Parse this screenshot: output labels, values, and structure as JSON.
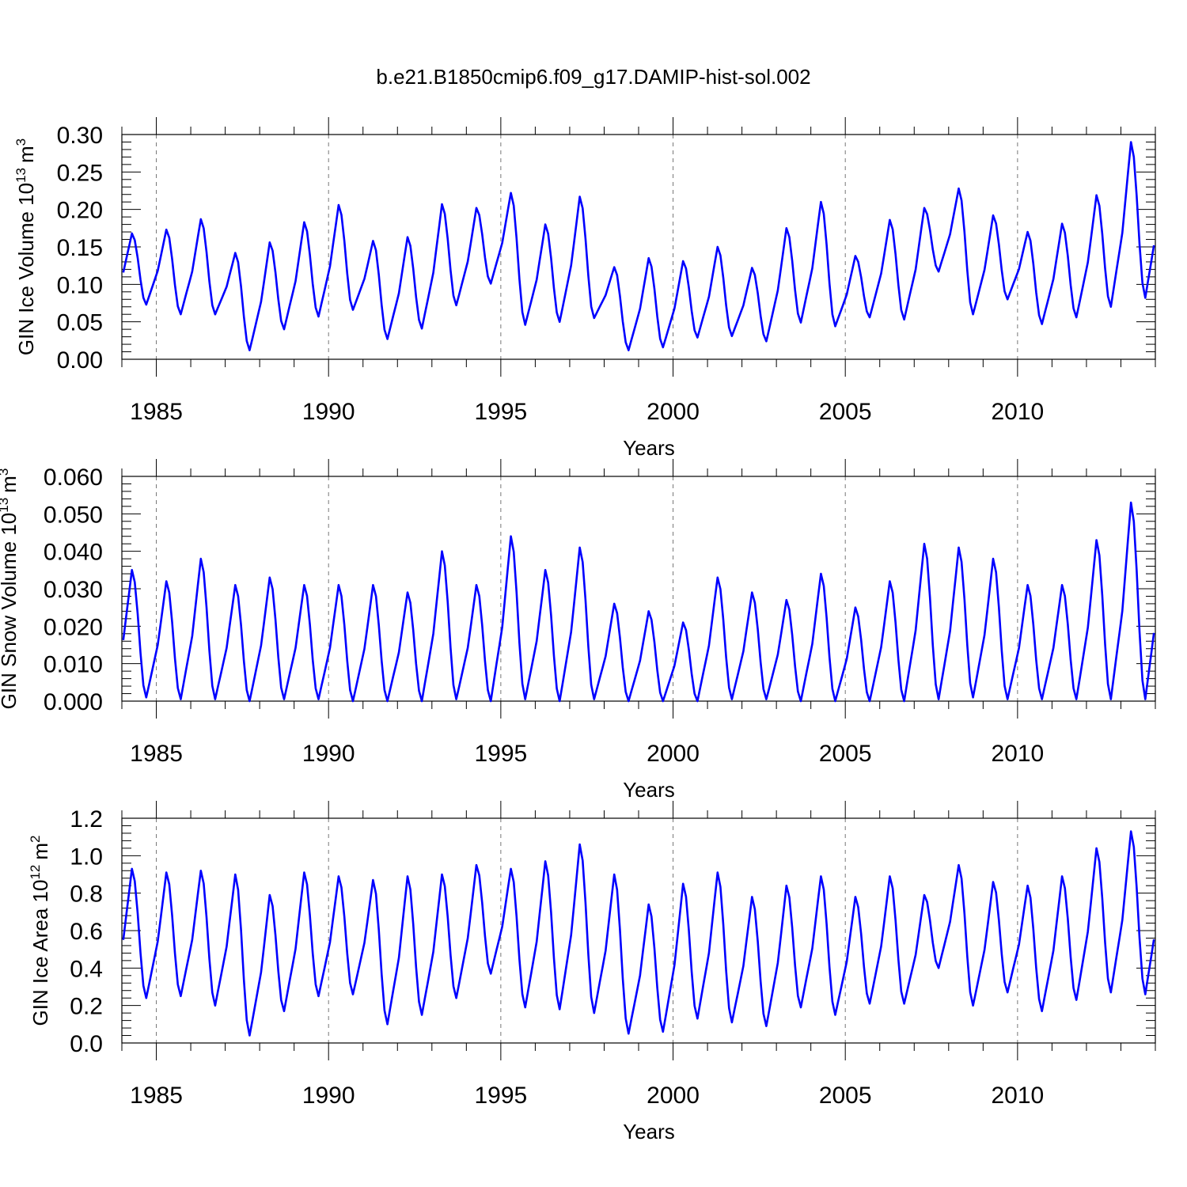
{
  "title": "b.e21.B1850cmip6.f09_g17.DAMIP-hist-sol.002",
  "chart_data": [
    {
      "type": "line",
      "title": "b.e21.B1850cmip6.f09_g17.DAMIP-hist-sol.002",
      "ylabel_main": "GIN Ice Volume 10",
      "ylabel_exp": "13",
      "ylabel_unit": "m",
      "ylabel_unit_exp": "3",
      "xlabel": "Years",
      "xlim": [
        1984.0,
        2014.0
      ],
      "ylim": [
        0.0,
        0.3
      ],
      "yticks": [
        0.0,
        0.05,
        0.1,
        0.15,
        0.2,
        0.25,
        0.3
      ],
      "ytick_labels": [
        "0.00",
        "0.05",
        "0.10",
        "0.15",
        "0.20",
        "0.25",
        "0.30"
      ],
      "xticks": [
        1985,
        1990,
        1995,
        2000,
        2005,
        2010
      ],
      "xtick_labels": [
        "1985",
        "1990",
        "1995",
        "2000",
        "2005",
        "2010"
      ],
      "grid": "dashed vertical at major x ticks",
      "series": [
        {
          "name": "GIN Ice Volume",
          "color": "#0000ff",
          "peaks": [
            0.168,
            0.173,
            0.187,
            0.142,
            0.156,
            0.183,
            0.206,
            0.158,
            0.163,
            0.207,
            0.202,
            0.222,
            0.18,
            0.217,
            0.123,
            0.135,
            0.131,
            0.15,
            0.122,
            0.175,
            0.21,
            0.138,
            0.186,
            0.202,
            0.228,
            0.192,
            0.17,
            0.181,
            0.219,
            0.29
          ],
          "troughs": [
            0.073,
            0.06,
            0.06,
            0.012,
            0.04,
            0.057,
            0.066,
            0.027,
            0.041,
            0.072,
            0.101,
            0.046,
            0.05,
            0.055,
            0.012,
            0.016,
            0.029,
            0.031,
            0.024,
            0.049,
            0.044,
            0.056,
            0.053,
            0.117,
            0.06,
            0.08,
            0.047,
            0.056,
            0.07,
            0.082
          ]
        }
      ]
    },
    {
      "type": "line",
      "ylabel_main": "GIN Snow Volume 10",
      "ylabel_exp": "13",
      "ylabel_unit": "m",
      "ylabel_unit_exp": "3",
      "xlabel": "Years",
      "xlim": [
        1984.0,
        2014.0
      ],
      "ylim": [
        0.0,
        0.06
      ],
      "yticks": [
        0.0,
        0.01,
        0.02,
        0.03,
        0.04,
        0.05,
        0.06
      ],
      "ytick_labels": [
        "0.000",
        "0.010",
        "0.020",
        "0.030",
        "0.040",
        "0.050",
        "0.060"
      ],
      "xticks": [
        1985,
        1990,
        1995,
        2000,
        2005,
        2010
      ],
      "xtick_labels": [
        "1985",
        "1990",
        "1995",
        "2000",
        "2005",
        "2010"
      ],
      "grid": "dashed vertical at major x ticks",
      "series": [
        {
          "name": "GIN Snow Volume",
          "color": "#0000ff",
          "peaks": [
            0.035,
            0.032,
            0.038,
            0.031,
            0.033,
            0.031,
            0.031,
            0.031,
            0.029,
            0.04,
            0.031,
            0.044,
            0.035,
            0.041,
            0.026,
            0.024,
            0.021,
            0.033,
            0.029,
            0.027,
            0.034,
            0.025,
            0.032,
            0.042,
            0.041,
            0.038,
            0.031,
            0.031,
            0.043,
            0.053
          ],
          "troughs": [
            0.001,
            0.0005,
            0.0005,
            0.0,
            0.0005,
            0.0005,
            0.0,
            0.0,
            0.0,
            0.0005,
            0.0,
            0.0005,
            0.0,
            0.0005,
            0.0,
            0.0,
            0.0,
            0.0005,
            0.0005,
            0.0,
            0.0,
            0.0,
            0.0,
            0.0005,
            0.001,
            0.0005,
            0.0005,
            0.0005,
            0.0005,
            0.0005
          ]
        }
      ]
    },
    {
      "type": "line",
      "ylabel_main": "GIN Ice Area 10",
      "ylabel_exp": "12",
      "ylabel_unit": "m",
      "ylabel_unit_exp": "2",
      "xlabel": "Years",
      "xlim": [
        1984.0,
        2014.0
      ],
      "ylim": [
        0.0,
        1.2
      ],
      "yticks": [
        0.0,
        0.2,
        0.4,
        0.6,
        0.8,
        1.0,
        1.2
      ],
      "ytick_labels": [
        "0.0",
        "0.2",
        "0.4",
        "0.6",
        "0.8",
        "1.0",
        "1.2"
      ],
      "xticks": [
        1985,
        1990,
        1995,
        2000,
        2005,
        2010
      ],
      "xtick_labels": [
        "1985",
        "1990",
        "1995",
        "2000",
        "2005",
        "2010"
      ],
      "grid": "dashed vertical at major x ticks",
      "series": [
        {
          "name": "GIN Ice Area",
          "color": "#0000ff",
          "peaks": [
            0.93,
            0.91,
            0.92,
            0.9,
            0.79,
            0.91,
            0.89,
            0.87,
            0.89,
            0.9,
            0.95,
            0.93,
            0.97,
            1.06,
            0.9,
            0.74,
            0.85,
            0.91,
            0.78,
            0.84,
            0.89,
            0.78,
            0.89,
            0.79,
            0.95,
            0.86,
            0.84,
            0.89,
            1.04,
            1.13
          ],
          "troughs": [
            0.24,
            0.25,
            0.2,
            0.04,
            0.17,
            0.25,
            0.26,
            0.1,
            0.15,
            0.24,
            0.37,
            0.19,
            0.18,
            0.16,
            0.05,
            0.06,
            0.13,
            0.11,
            0.09,
            0.19,
            0.15,
            0.21,
            0.21,
            0.4,
            0.2,
            0.27,
            0.17,
            0.23,
            0.27,
            0.26
          ]
        }
      ]
    }
  ]
}
